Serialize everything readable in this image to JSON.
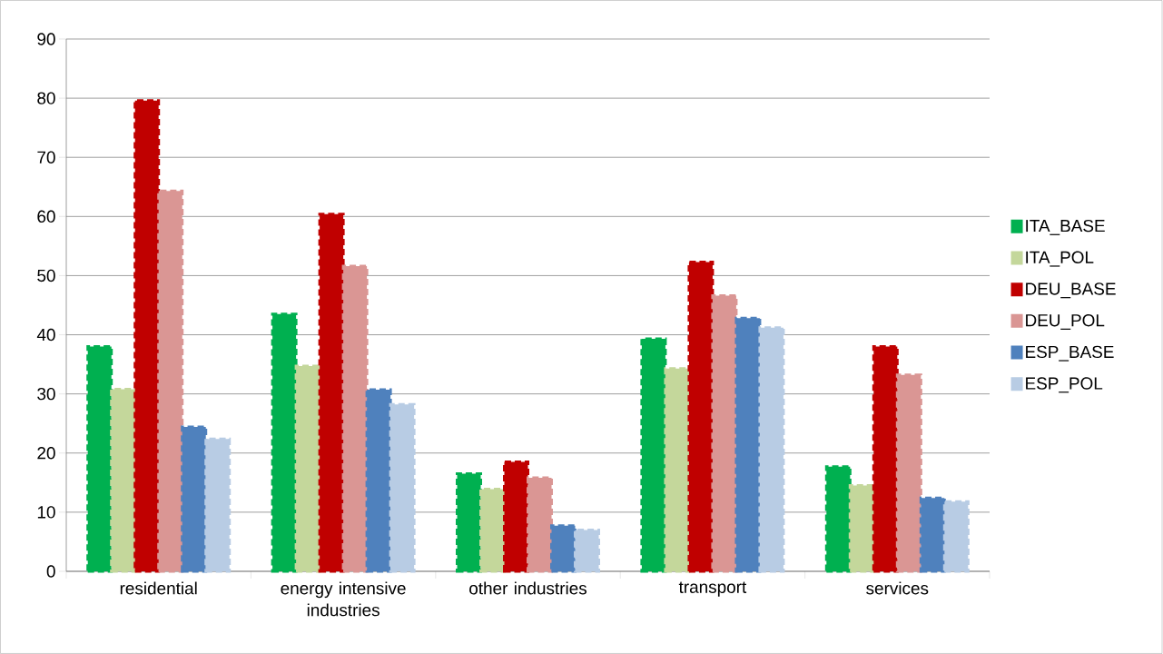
{
  "chart_data": {
    "type": "bar",
    "categories": [
      "residential",
      "energy intensive industries",
      "other industries",
      "transport",
      "services"
    ],
    "series": [
      {
        "name": "ITA_BASE",
        "color": "#00b050",
        "values": [
          38.0,
          43.5,
          16.5,
          39.3,
          17.7
        ]
      },
      {
        "name": "ITA_POL",
        "color": "#c4d79b",
        "values": [
          30.8,
          34.7,
          13.9,
          34.3,
          14.5
        ]
      },
      {
        "name": "DEU_BASE",
        "color": "#c00000",
        "values": [
          79.6,
          60.4,
          18.5,
          52.3,
          38.0
        ]
      },
      {
        "name": "DEU_POL",
        "color": "#da9694",
        "values": [
          64.3,
          51.6,
          15.8,
          46.6,
          33.2
        ]
      },
      {
        "name": "ESP_BASE",
        "color": "#4f81bd",
        "values": [
          24.4,
          30.7,
          7.7,
          42.8,
          12.4
        ]
      },
      {
        "name": "ESP_POL",
        "color": "#b8cce4",
        "values": [
          22.4,
          28.2,
          7.0,
          41.2,
          11.8
        ]
      }
    ],
    "ylim": [
      0,
      90
    ],
    "yticks": [
      0,
      10,
      20,
      30,
      40,
      50,
      60,
      70,
      80,
      90
    ],
    "grid": "y",
    "legend": "right",
    "line_style": "dashed"
  }
}
